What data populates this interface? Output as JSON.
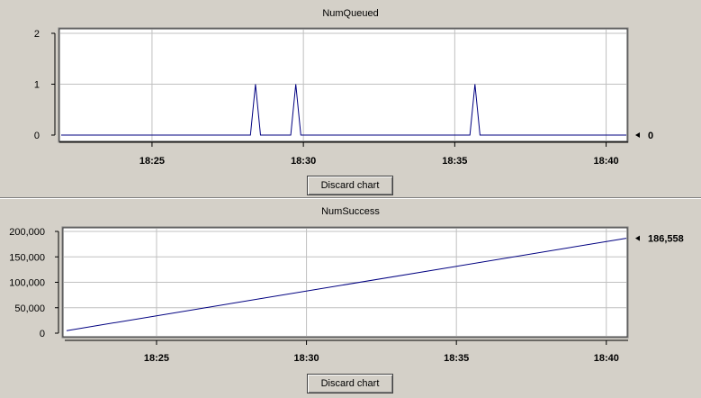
{
  "charts": [
    {
      "title": "NumQueued",
      "discard_label": "Discard chart",
      "current_value_label": "0",
      "chart_data": {
        "type": "line",
        "title": "NumQueued",
        "xlabel": "",
        "ylabel": "",
        "x_tick_labels": [
          "18:25",
          "18:30",
          "18:35",
          "18:40"
        ],
        "y_tick_labels": [
          "0",
          "1",
          "2"
        ],
        "ylim": [
          0,
          2
        ],
        "grid": true,
        "series": [
          {
            "color": "#000080",
            "x": [
              "18:22:00",
              "18:28:15",
              "18:28:25",
              "18:28:35",
              "18:29:35",
              "18:29:45",
              "18:29:55",
              "18:35:30",
              "18:35:40",
              "18:35:50",
              "18:40:40"
            ],
            "values": [
              0,
              0,
              1,
              0,
              0,
              1,
              0,
              0,
              1,
              0,
              0
            ]
          }
        ],
        "current_value": 0
      }
    },
    {
      "title": "NumSuccess",
      "discard_label": "Discard chart",
      "current_value_label": "186,558",
      "chart_data": {
        "type": "line",
        "title": "NumSuccess",
        "xlabel": "",
        "ylabel": "",
        "x_tick_labels": [
          "18:25",
          "18:30",
          "18:35",
          "18:40"
        ],
        "y_tick_labels": [
          "0",
          "50,000",
          "100,000",
          "150,000",
          "200,000"
        ],
        "ylim": [
          0,
          200000
        ],
        "grid": true,
        "series": [
          {
            "color": "#000080",
            "x": [
              "18:22:00",
              "18:40:40"
            ],
            "values": [
              5000,
              186558
            ]
          }
        ],
        "current_value": 186558
      }
    }
  ],
  "colors": {
    "line": "#000080",
    "plot_bg": "#ffffff",
    "grid": "#c0c0c0",
    "window_bg": "#d4d0c8"
  }
}
